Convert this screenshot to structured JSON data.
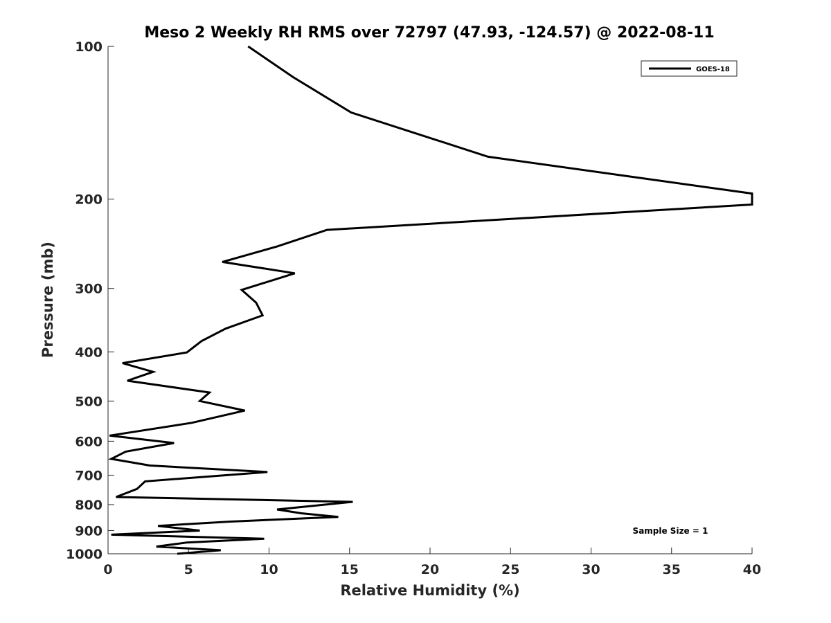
{
  "chart_data": {
    "type": "line",
    "title": "Meso 2 Weekly RH RMS over 72797 (47.93, -124.57) @ 2022-08-11",
    "xlabel": "Relative Humidity (%)",
    "ylabel": "Pressure (mb)",
    "xlim": [
      0,
      40
    ],
    "ylim": [
      1000,
      100
    ],
    "y_scale": "log",
    "y_reversed": true,
    "grid": false,
    "legend_position": "top-right",
    "x_ticks": [
      0,
      5,
      10,
      15,
      20,
      25,
      30,
      35,
      40
    ],
    "y_ticks": [
      100,
      200,
      300,
      400,
      500,
      600,
      700,
      800,
      900,
      1000
    ],
    "series": [
      {
        "name": "GOES-18",
        "color": "#000000",
        "points": [
          [
            8.7,
            100
          ],
          [
            11.5,
            115
          ],
          [
            15.1,
            135
          ],
          [
            23.6,
            165
          ],
          [
            40.0,
            195
          ],
          [
            40.0,
            205
          ],
          [
            13.6,
            230
          ],
          [
            10.5,
            248
          ],
          [
            7.1,
            266
          ],
          [
            11.6,
            280
          ],
          [
            8.3,
            302
          ],
          [
            9.2,
            320
          ],
          [
            9.6,
            339
          ],
          [
            7.3,
            360
          ],
          [
            5.8,
            381
          ],
          [
            4.9,
            401
          ],
          [
            0.9,
            421
          ],
          [
            2.8,
            438
          ],
          [
            1.2,
            456
          ],
          [
            6.3,
            481
          ],
          [
            5.7,
            500
          ],
          [
            8.5,
            522
          ],
          [
            5.2,
            552
          ],
          [
            0.1,
            585
          ],
          [
            4.1,
            605
          ],
          [
            1.1,
            629
          ],
          [
            0.2,
            650
          ],
          [
            2.6,
            670
          ],
          [
            9.9,
            690
          ],
          [
            2.3,
            720
          ],
          [
            1.8,
            745
          ],
          [
            0.5,
            773
          ],
          [
            15.2,
            790
          ],
          [
            10.5,
            818
          ],
          [
            12.0,
            832
          ],
          [
            14.3,
            846
          ],
          [
            7.6,
            864
          ],
          [
            3.1,
            881
          ],
          [
            5.7,
            900
          ],
          [
            0.2,
            917
          ],
          [
            9.7,
            934
          ],
          [
            4.9,
            950
          ],
          [
            3.0,
            968
          ],
          [
            7.0,
            984
          ],
          [
            4.3,
            1000
          ]
        ]
      }
    ],
    "annotations": [
      "Sample Size = 1"
    ]
  }
}
